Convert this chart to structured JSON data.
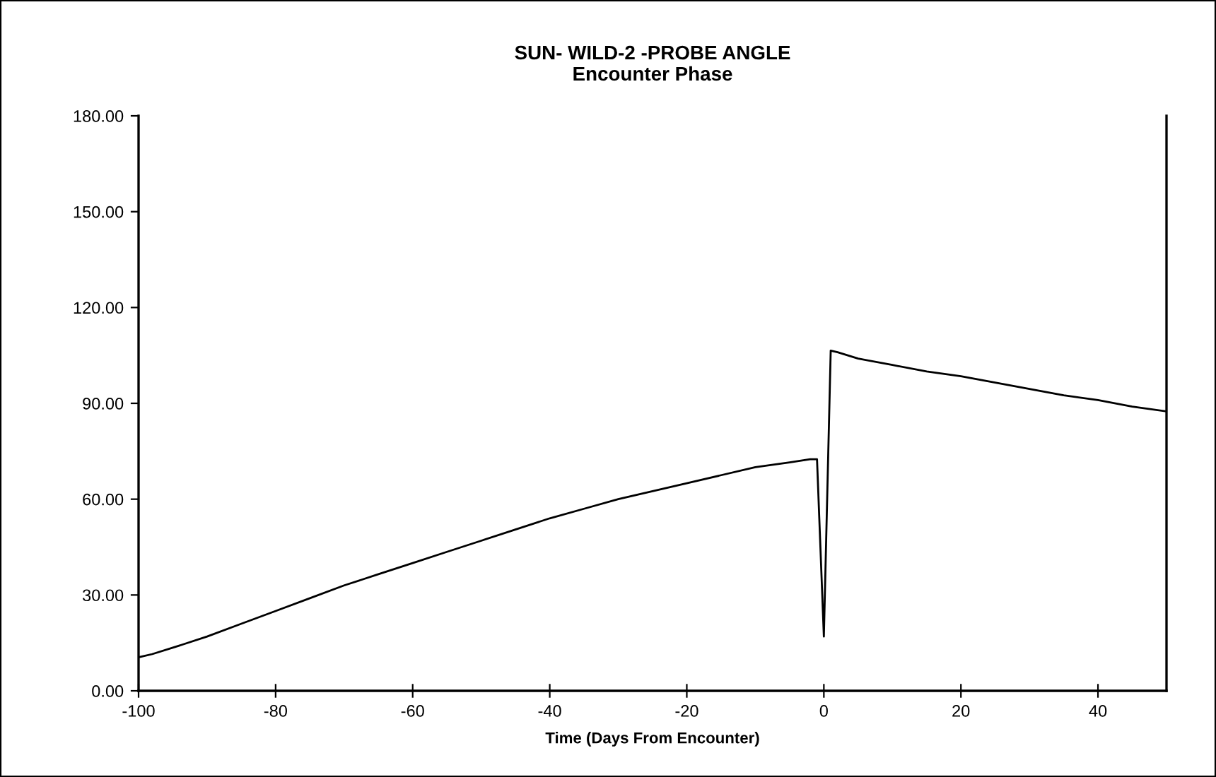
{
  "chart_data": {
    "type": "line",
    "title": "SUN- WILD-2 -PROBE ANGLE\nEncounter Phase",
    "xlabel": "Time (Days From Encounter)",
    "series": [
      {
        "color": "#000000",
        "x": [
          -100,
          -98,
          -95,
          -90,
          -85,
          -80,
          -75,
          -70,
          -65,
          -60,
          -55,
          -50,
          -45,
          -40,
          -35,
          -30,
          -25,
          -20,
          -15,
          -10,
          -5,
          -2,
          -1,
          0,
          1,
          2,
          5,
          10,
          15,
          20,
          25,
          30,
          35,
          40,
          45,
          50
        ],
        "values": [
          10.5,
          11.5,
          13.5,
          17,
          21,
          25,
          29,
          33,
          36.5,
          40,
          43.5,
          47,
          50.5,
          54,
          57,
          60,
          62.5,
          65,
          67.5,
          70,
          71.5,
          72.5,
          72.5,
          17,
          106.5,
          106,
          104,
          102,
          100,
          98.5,
          96.5,
          94.5,
          92.5,
          91,
          89,
          87.5
        ]
      }
    ],
    "xlim": [
      -100,
      50
    ],
    "xticks": [
      -100,
      -80,
      -60,
      -40,
      -20,
      0,
      20,
      40
    ],
    "ylim": [
      0,
      180
    ],
    "yticks": [
      {
        "value": 0,
        "label": "0.00"
      },
      {
        "value": 30,
        "label": "30.00"
      },
      {
        "value": 60,
        "label": "60.00"
      },
      {
        "value": 90,
        "label": "90.00"
      },
      {
        "value": 120,
        "label": "120.00"
      },
      {
        "value": 150,
        "label": "150.00"
      },
      {
        "value": 180,
        "label": "180.00"
      }
    ],
    "grid": false,
    "marker": "none",
    "line_style": "solid"
  }
}
